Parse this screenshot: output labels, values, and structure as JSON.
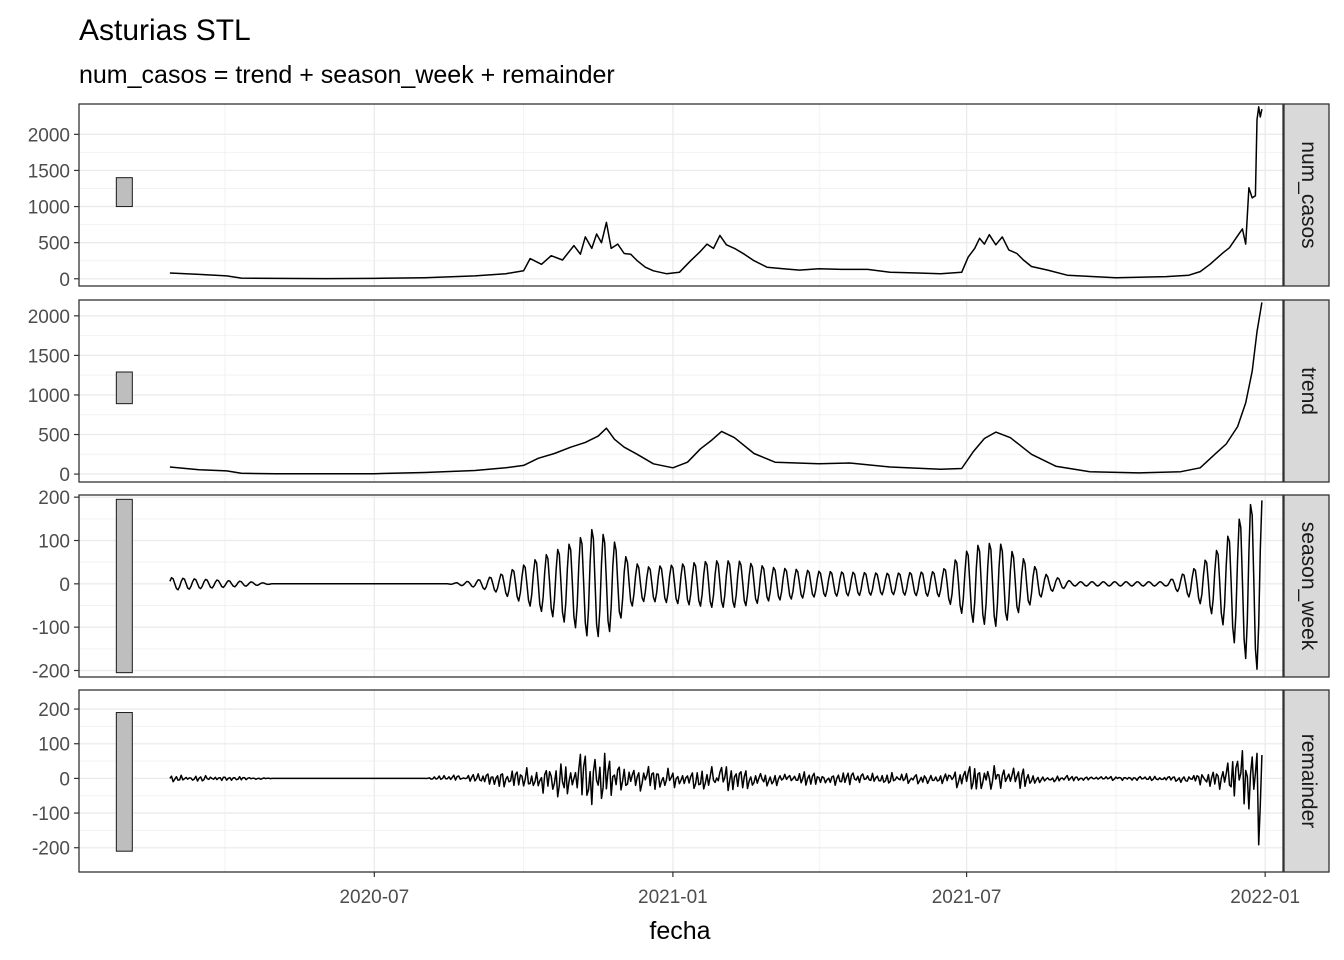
{
  "chart_data": {
    "type": "line",
    "title": "Asturias STL",
    "subtitle": "num_casos = trend + season_week + remainder",
    "xlabel": "fecha",
    "x_ticks": [
      "2020-07",
      "2021-01",
      "2021-07",
      "2022-01"
    ],
    "x_range": [
      "2020-01-01",
      "2022-01-12"
    ],
    "grid": true,
    "series_color": "#000000",
    "range_bar_color": "#bebebe",
    "panels": [
      {
        "name": "num_casos",
        "ylim": [
          -100,
          2420
        ],
        "y_ticks": [
          0,
          500,
          1000,
          1500,
          2000
        ],
        "range_bar": [
          1000,
          1400
        ],
        "points": [
          [
            "2020-02-26",
            80
          ],
          [
            "2020-03-15",
            60
          ],
          [
            "2020-04-01",
            40
          ],
          [
            "2020-04-10",
            10
          ],
          [
            "2020-05-01",
            5
          ],
          [
            "2020-06-01",
            3
          ],
          [
            "2020-07-01",
            5
          ],
          [
            "2020-08-01",
            15
          ],
          [
            "2020-09-01",
            40
          ],
          [
            "2020-09-20",
            70
          ],
          [
            "2020-10-01",
            110
          ],
          [
            "2020-10-05",
            280
          ],
          [
            "2020-10-12",
            200
          ],
          [
            "2020-10-18",
            320
          ],
          [
            "2020-10-25",
            260
          ],
          [
            "2020-11-01",
            460
          ],
          [
            "2020-11-05",
            340
          ],
          [
            "2020-11-08",
            580
          ],
          [
            "2020-11-12",
            420
          ],
          [
            "2020-11-15",
            620
          ],
          [
            "2020-11-18",
            500
          ],
          [
            "2020-11-21",
            780
          ],
          [
            "2020-11-24",
            420
          ],
          [
            "2020-11-28",
            480
          ],
          [
            "2020-12-02",
            350
          ],
          [
            "2020-12-06",
            340
          ],
          [
            "2020-12-10",
            250
          ],
          [
            "2020-12-15",
            160
          ],
          [
            "2020-12-20",
            110
          ],
          [
            "2020-12-28",
            70
          ],
          [
            "2021-01-05",
            90
          ],
          [
            "2021-01-12",
            250
          ],
          [
            "2021-01-18",
            380
          ],
          [
            "2021-01-22",
            480
          ],
          [
            "2021-01-26",
            420
          ],
          [
            "2021-01-30",
            600
          ],
          [
            "2021-02-03",
            470
          ],
          [
            "2021-02-08",
            420
          ],
          [
            "2021-02-14",
            340
          ],
          [
            "2021-02-20",
            250
          ],
          [
            "2021-02-28",
            160
          ],
          [
            "2021-03-10",
            140
          ],
          [
            "2021-03-20",
            120
          ],
          [
            "2021-04-01",
            140
          ],
          [
            "2021-04-15",
            130
          ],
          [
            "2021-05-01",
            130
          ],
          [
            "2021-05-15",
            90
          ],
          [
            "2021-06-01",
            80
          ],
          [
            "2021-06-15",
            70
          ],
          [
            "2021-06-28",
            90
          ],
          [
            "2021-07-02",
            300
          ],
          [
            "2021-07-06",
            420
          ],
          [
            "2021-07-09",
            560
          ],
          [
            "2021-07-12",
            480
          ],
          [
            "2021-07-15",
            610
          ],
          [
            "2021-07-19",
            470
          ],
          [
            "2021-07-23",
            580
          ],
          [
            "2021-07-27",
            400
          ],
          [
            "2021-08-01",
            350
          ],
          [
            "2021-08-05",
            260
          ],
          [
            "2021-08-10",
            170
          ],
          [
            "2021-08-20",
            120
          ],
          [
            "2021-09-01",
            50
          ],
          [
            "2021-10-01",
            15
          ],
          [
            "2021-11-01",
            30
          ],
          [
            "2021-11-15",
            50
          ],
          [
            "2021-11-22",
            100
          ],
          [
            "2021-11-28",
            200
          ],
          [
            "2021-12-02",
            280
          ],
          [
            "2021-12-06",
            360
          ],
          [
            "2021-12-10",
            430
          ],
          [
            "2021-12-14",
            560
          ],
          [
            "2021-12-18",
            690
          ],
          [
            "2021-12-20",
            480
          ],
          [
            "2021-12-22",
            1260
          ],
          [
            "2021-12-24",
            1120
          ],
          [
            "2021-12-26",
            1150
          ],
          [
            "2021-12-27",
            2200
          ],
          [
            "2021-12-28",
            2380
          ],
          [
            "2021-12-29",
            2240
          ],
          [
            "2021-12-30",
            2350
          ]
        ]
      },
      {
        "name": "trend",
        "ylim": [
          -100,
          2200
        ],
        "y_ticks": [
          0,
          500,
          1000,
          1500,
          2000
        ],
        "range_bar": [
          890,
          1290
        ],
        "points": [
          [
            "2020-02-26",
            90
          ],
          [
            "2020-03-15",
            55
          ],
          [
            "2020-04-01",
            40
          ],
          [
            "2020-04-10",
            10
          ],
          [
            "2020-05-01",
            5
          ],
          [
            "2020-06-01",
            3
          ],
          [
            "2020-07-01",
            5
          ],
          [
            "2020-08-01",
            20
          ],
          [
            "2020-09-01",
            45
          ],
          [
            "2020-09-20",
            80
          ],
          [
            "2020-10-01",
            110
          ],
          [
            "2020-10-10",
            200
          ],
          [
            "2020-10-20",
            260
          ],
          [
            "2020-10-30",
            340
          ],
          [
            "2020-11-08",
            400
          ],
          [
            "2020-11-16",
            480
          ],
          [
            "2020-11-21",
            580
          ],
          [
            "2020-11-26",
            440
          ],
          [
            "2020-12-02",
            340
          ],
          [
            "2020-12-10",
            250
          ],
          [
            "2020-12-20",
            130
          ],
          [
            "2021-01-01",
            80
          ],
          [
            "2021-01-10",
            150
          ],
          [
            "2021-01-18",
            320
          ],
          [
            "2021-01-25",
            430
          ],
          [
            "2021-01-31",
            540
          ],
          [
            "2021-02-08",
            460
          ],
          [
            "2021-02-20",
            260
          ],
          [
            "2021-03-05",
            150
          ],
          [
            "2021-04-01",
            130
          ],
          [
            "2021-04-20",
            140
          ],
          [
            "2021-05-15",
            90
          ],
          [
            "2021-06-15",
            60
          ],
          [
            "2021-06-28",
            70
          ],
          [
            "2021-07-05",
            280
          ],
          [
            "2021-07-12",
            450
          ],
          [
            "2021-07-19",
            530
          ],
          [
            "2021-07-28",
            460
          ],
          [
            "2021-08-10",
            250
          ],
          [
            "2021-08-25",
            100
          ],
          [
            "2021-09-15",
            30
          ],
          [
            "2021-10-15",
            15
          ],
          [
            "2021-11-10",
            30
          ],
          [
            "2021-11-22",
            80
          ],
          [
            "2021-12-01",
            250
          ],
          [
            "2021-12-08",
            380
          ],
          [
            "2021-12-15",
            600
          ],
          [
            "2021-12-20",
            900
          ],
          [
            "2021-12-24",
            1300
          ],
          [
            "2021-12-27",
            1800
          ],
          [
            "2021-12-30",
            2170
          ]
        ]
      },
      {
        "name": "season_week",
        "ylim": [
          -215,
          205
        ],
        "y_ticks": [
          -200,
          -100,
          0,
          100,
          200
        ],
        "range_bar": [
          -205,
          195
        ],
        "oscillation_period_days": 7,
        "envelope": [
          [
            "2020-02-26",
            15
          ],
          [
            "2020-04-15",
            5
          ],
          [
            "2020-05-01",
            0
          ],
          [
            "2020-08-15",
            0
          ],
          [
            "2020-09-01",
            8
          ],
          [
            "2020-09-15",
            20
          ],
          [
            "2020-10-01",
            45
          ],
          [
            "2020-10-15",
            70
          ],
          [
            "2020-11-01",
            100
          ],
          [
            "2020-11-12",
            130
          ],
          [
            "2020-11-24",
            110
          ],
          [
            "2020-12-05",
            55
          ],
          [
            "2020-12-15",
            40
          ],
          [
            "2021-01-01",
            45
          ],
          [
            "2021-01-25",
            55
          ],
          [
            "2021-02-10",
            55
          ],
          [
            "2021-03-01",
            40
          ],
          [
            "2021-04-01",
            30
          ],
          [
            "2021-05-15",
            25
          ],
          [
            "2021-06-15",
            30
          ],
          [
            "2021-07-05",
            90
          ],
          [
            "2021-07-20",
            100
          ],
          [
            "2021-08-05",
            60
          ],
          [
            "2021-08-20",
            20
          ],
          [
            "2021-09-05",
            5
          ],
          [
            "2021-11-01",
            5
          ],
          [
            "2021-11-20",
            40
          ],
          [
            "2021-12-05",
            90
          ],
          [
            "2021-12-15",
            150
          ],
          [
            "2021-12-25",
            200
          ],
          [
            "2021-12-30",
            200
          ]
        ]
      },
      {
        "name": "remainder",
        "ylim": [
          -270,
          255
        ],
        "y_ticks": [
          -200,
          -100,
          0,
          100,
          200
        ],
        "range_bar": [
          -210,
          190
        ],
        "noise_period_days": 3,
        "envelope": [
          [
            "2020-02-26",
            12
          ],
          [
            "2020-04-15",
            5
          ],
          [
            "2020-05-01",
            0
          ],
          [
            "2020-08-01",
            0
          ],
          [
            "2020-08-10",
            8
          ],
          [
            "2020-09-01",
            15
          ],
          [
            "2020-10-01",
            35
          ],
          [
            "2020-11-01",
            70
          ],
          [
            "2020-11-15",
            100
          ],
          [
            "2020-12-01",
            50
          ],
          [
            "2021-01-01",
            30
          ],
          [
            "2021-02-01",
            40
          ],
          [
            "2021-03-01",
            25
          ],
          [
            "2021-05-01",
            20
          ],
          [
            "2021-06-15",
            15
          ],
          [
            "2021-07-10",
            50
          ],
          [
            "2021-07-25",
            45
          ],
          [
            "2021-08-15",
            15
          ],
          [
            "2021-09-15",
            5
          ],
          [
            "2021-11-01",
            8
          ],
          [
            "2021-12-01",
            30
          ],
          [
            "2021-12-20",
            100
          ],
          [
            "2021-12-27",
            250
          ],
          [
            "2021-12-30",
            230
          ]
        ]
      }
    ]
  }
}
